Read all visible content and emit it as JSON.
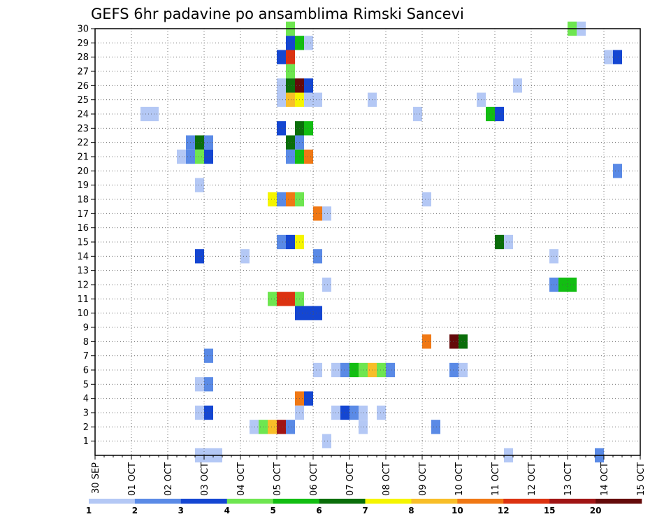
{
  "chart_data": {
    "type": "heatmap",
    "title": "GEFS 6hr padavine po ansamblima Rimski Sancevi",
    "xlabel": "",
    "ylabel": "",
    "x_tick_labels": [
      "30 SEP",
      "01 OCT",
      "02 OCT",
      "03 OCT",
      "04 OCT",
      "05 OCT",
      "06 OCT",
      "07 OCT",
      "08 OCT",
      "09 OCT",
      "10 OCT",
      "11 OCT",
      "12 OCT",
      "13 OCT",
      "14 OCT",
      "15 OCT"
    ],
    "y_tick_labels": [
      "1",
      "2",
      "3",
      "4",
      "5",
      "6",
      "7",
      "8",
      "9",
      "10",
      "11",
      "12",
      "13",
      "14",
      "15",
      "16",
      "17",
      "18",
      "19",
      "20",
      "21",
      "22",
      "23",
      "24",
      "25",
      "26",
      "27",
      "28",
      "29",
      "30"
    ],
    "xlim_days": [
      0,
      15
    ],
    "ylim_members": [
      0,
      30
    ],
    "time_step_hours": 6,
    "grid": true,
    "colorbar": {
      "placement": "bottom",
      "bounds": [
        "1",
        "2",
        "3",
        "4",
        "5",
        "6",
        "7",
        "8",
        "10",
        "12",
        "15",
        "20"
      ],
      "colors": [
        "#b4c8f5",
        "#5a8ae6",
        "#1446d2",
        "#6ee650",
        "#12be12",
        "#0a6e0a",
        "#f5f500",
        "#f8be28",
        "#f07814",
        "#dc3210",
        "#a01414",
        "#640a0a"
      ]
    },
    "cells": [
      {
        "d": 5.25,
        "m": 30,
        "c": 3
      },
      {
        "d": 5.25,
        "m": 29,
        "c": 2
      },
      {
        "d": 5.5,
        "m": 29,
        "c": 4
      },
      {
        "d": 5.75,
        "m": 29,
        "c": 0
      },
      {
        "d": 5.0,
        "m": 28,
        "c": 2
      },
      {
        "d": 5.25,
        "m": 28,
        "c": 9
      },
      {
        "d": 5.25,
        "m": 27,
        "c": 3
      },
      {
        "d": 5.0,
        "m": 26,
        "c": 0
      },
      {
        "d": 5.25,
        "m": 26,
        "c": 5
      },
      {
        "d": 5.5,
        "m": 26,
        "c": 11
      },
      {
        "d": 5.75,
        "m": 26,
        "c": 2
      },
      {
        "d": 5.0,
        "m": 25,
        "c": 0
      },
      {
        "d": 5.25,
        "m": 25,
        "c": 7
      },
      {
        "d": 5.5,
        "m": 25,
        "c": 6
      },
      {
        "d": 5.75,
        "m": 25,
        "c": 0
      },
      {
        "d": 6.0,
        "m": 25,
        "c": 0
      },
      {
        "d": 1.25,
        "m": 24,
        "c": 0
      },
      {
        "d": 1.5,
        "m": 24,
        "c": 0
      },
      {
        "d": 5.0,
        "m": 23,
        "c": 2
      },
      {
        "d": 5.5,
        "m": 23,
        "c": 5
      },
      {
        "d": 5.75,
        "m": 23,
        "c": 4
      },
      {
        "d": 2.5,
        "m": 22,
        "c": 1
      },
      {
        "d": 2.75,
        "m": 22,
        "c": 5
      },
      {
        "d": 3.0,
        "m": 22,
        "c": 1
      },
      {
        "d": 5.25,
        "m": 22,
        "c": 5
      },
      {
        "d": 5.5,
        "m": 22,
        "c": 1
      },
      {
        "d": 2.25,
        "m": 21,
        "c": 0
      },
      {
        "d": 2.5,
        "m": 21,
        "c": 1
      },
      {
        "d": 2.75,
        "m": 21,
        "c": 3
      },
      {
        "d": 3.0,
        "m": 21,
        "c": 2
      },
      {
        "d": 5.25,
        "m": 21,
        "c": 1
      },
      {
        "d": 5.5,
        "m": 21,
        "c": 4
      },
      {
        "d": 5.75,
        "m": 21,
        "c": 8
      },
      {
        "d": 2.75,
        "m": 19,
        "c": 0
      },
      {
        "d": 4.75,
        "m": 18,
        "c": 6
      },
      {
        "d": 5.0,
        "m": 18,
        "c": 1
      },
      {
        "d": 5.25,
        "m": 18,
        "c": 8
      },
      {
        "d": 5.5,
        "m": 18,
        "c": 3
      },
      {
        "d": 6.0,
        "m": 17,
        "c": 8
      },
      {
        "d": 6.25,
        "m": 17,
        "c": 0
      },
      {
        "d": 5.0,
        "m": 15,
        "c": 1
      },
      {
        "d": 5.25,
        "m": 15,
        "c": 2
      },
      {
        "d": 5.5,
        "m": 15,
        "c": 6
      },
      {
        "d": 2.75,
        "m": 14,
        "c": 2
      },
      {
        "d": 4.0,
        "m": 14,
        "c": 0
      },
      {
        "d": 6.0,
        "m": 14,
        "c": 1
      },
      {
        "d": 6.25,
        "m": 12,
        "c": 0
      },
      {
        "d": 4.75,
        "m": 11,
        "c": 3
      },
      {
        "d": 5.0,
        "m": 11,
        "c": 9
      },
      {
        "d": 5.25,
        "m": 11,
        "c": 9
      },
      {
        "d": 5.5,
        "m": 11,
        "c": 3
      },
      {
        "d": 5.5,
        "m": 10,
        "c": 2
      },
      {
        "d": 5.75,
        "m": 10,
        "c": 2
      },
      {
        "d": 6.0,
        "m": 10,
        "c": 2
      },
      {
        "d": 3.0,
        "m": 7,
        "c": 1
      },
      {
        "d": 6.0,
        "m": 6,
        "c": 0
      },
      {
        "d": 2.75,
        "m": 5,
        "c": 0
      },
      {
        "d": 3.0,
        "m": 5,
        "c": 1
      },
      {
        "d": 5.5,
        "m": 4,
        "c": 8
      },
      {
        "d": 5.75,
        "m": 4,
        "c": 2
      },
      {
        "d": 2.75,
        "m": 3,
        "c": 0
      },
      {
        "d": 3.0,
        "m": 3,
        "c": 2
      },
      {
        "d": 5.5,
        "m": 3,
        "c": 0
      },
      {
        "d": 4.25,
        "m": 2,
        "c": 0
      },
      {
        "d": 4.5,
        "m": 2,
        "c": 3
      },
      {
        "d": 4.75,
        "m": 2,
        "c": 7
      },
      {
        "d": 5.0,
        "m": 2,
        "c": 10
      },
      {
        "d": 5.25,
        "m": 2,
        "c": 1
      },
      {
        "d": 6.25,
        "m": 1,
        "c": 0
      },
      {
        "d": 2.75,
        "m": 0,
        "c": 0
      },
      {
        "d": 3.0,
        "m": 0,
        "c": 0
      },
      {
        "d": 3.25,
        "m": 0,
        "c": 0
      },
      {
        "d": 6.5,
        "m": 6,
        "c": 0
      },
      {
        "d": 6.75,
        "m": 6,
        "c": 1
      },
      {
        "d": 7.0,
        "m": 6,
        "c": 4
      },
      {
        "d": 7.25,
        "m": 6,
        "c": 3
      },
      {
        "d": 7.5,
        "m": 6,
        "c": 7
      },
      {
        "d": 7.75,
        "m": 6,
        "c": 3
      },
      {
        "d": 8.0,
        "m": 6,
        "c": 1
      },
      {
        "d": 6.5,
        "m": 3,
        "c": 0
      },
      {
        "d": 6.75,
        "m": 3,
        "c": 2
      },
      {
        "d": 7.0,
        "m": 3,
        "c": 1
      },
      {
        "d": 7.25,
        "m": 3,
        "c": 0
      },
      {
        "d": 7.75,
        "m": 3,
        "c": 0
      },
      {
        "d": 7.25,
        "m": 2,
        "c": 0
      },
      {
        "d": 7.5,
        "m": 25,
        "c": 0
      },
      {
        "d": 8.75,
        "m": 24,
        "c": 0
      },
      {
        "d": 9.0,
        "m": 18,
        "c": 0
      },
      {
        "d": 9.0,
        "m": 8,
        "c": 8
      },
      {
        "d": 9.25,
        "m": 2,
        "c": 1
      },
      {
        "d": 9.75,
        "m": 8,
        "c": 11
      },
      {
        "d": 10.0,
        "m": 8,
        "c": 5
      },
      {
        "d": 9.75,
        "m": 6,
        "c": 1
      },
      {
        "d": 10.0,
        "m": 6,
        "c": 0
      },
      {
        "d": 10.5,
        "m": 25,
        "c": 0
      },
      {
        "d": 10.75,
        "m": 24,
        "c": 4
      },
      {
        "d": 11.0,
        "m": 24,
        "c": 2
      },
      {
        "d": 11.5,
        "m": 26,
        "c": 0
      },
      {
        "d": 11.0,
        "m": 15,
        "c": 5
      },
      {
        "d": 11.25,
        "m": 15,
        "c": 0
      },
      {
        "d": 11.25,
        "m": 0,
        "c": 0
      },
      {
        "d": 12.5,
        "m": 14,
        "c": 0
      },
      {
        "d": 12.5,
        "m": 12,
        "c": 1
      },
      {
        "d": 12.75,
        "m": 12,
        "c": 4
      },
      {
        "d": 13.0,
        "m": 12,
        "c": 4
      },
      {
        "d": 13.0,
        "m": 30,
        "c": 3
      },
      {
        "d": 13.25,
        "m": 30,
        "c": 0
      },
      {
        "d": 14.0,
        "m": 28,
        "c": 0
      },
      {
        "d": 14.25,
        "m": 28,
        "c": 2
      },
      {
        "d": 14.25,
        "m": 20,
        "c": 1
      },
      {
        "d": 13.75,
        "m": 0,
        "c": 1
      }
    ]
  }
}
